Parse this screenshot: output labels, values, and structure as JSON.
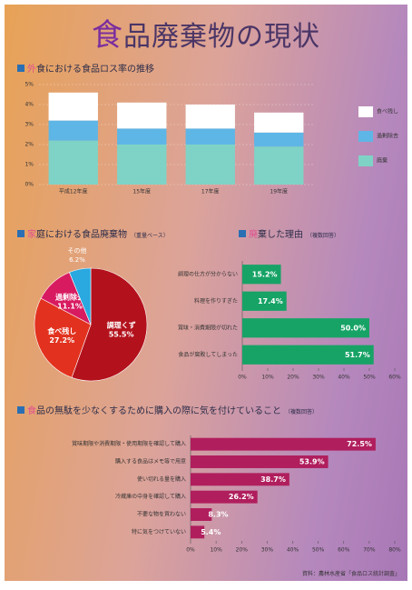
{
  "title": "食品廃棄物の現状",
  "source": "資料：農林水産省「食品ロス統計調査」",
  "chart_data": [
    {
      "type": "bar",
      "stacked": true,
      "title": "外食における食品ロス率の推移",
      "categories": [
        "平成12年度",
        "15年度",
        "17年度",
        "19年度"
      ],
      "series": [
        {
          "name": "廃棄",
          "color": "#7fd3c6",
          "values": [
            2.2,
            2.0,
            2.0,
            1.9
          ]
        },
        {
          "name": "過剰除去",
          "color": "#5eb6e6",
          "values": [
            1.0,
            0.8,
            0.8,
            0.7
          ]
        },
        {
          "name": "食べ残し",
          "color": "#ffffff",
          "values": [
            1.4,
            1.3,
            1.2,
            1.0
          ]
        }
      ],
      "ylim": [
        0,
        5
      ],
      "yticks": [
        {
          "value": 0,
          "label": "0%"
        },
        {
          "value": 1,
          "label": "1%"
        },
        {
          "value": 2,
          "label": "2%"
        },
        {
          "value": 3,
          "label": "3%"
        },
        {
          "value": 4,
          "label": "4%"
        },
        {
          "value": 5,
          "label": "5%"
        }
      ],
      "grid": true
    },
    {
      "type": "pie",
      "title": "家庭における食品廃棄物",
      "subtitle": "（重量ベース）",
      "categories": [
        "調理くず",
        "食べ残し",
        "過剰除去",
        "その他"
      ],
      "values": [
        55.5,
        27.2,
        11.1,
        6.2
      ],
      "value_labels": [
        "55.5%",
        "27.2%",
        "11.1%",
        "6.2%"
      ],
      "colors": [
        "#b3121d",
        "#e2321f",
        "#d81b60",
        "#2aa8e0"
      ]
    },
    {
      "type": "bar",
      "orientation": "horizontal",
      "title": "廃棄した理由",
      "subtitle": "（複数回答）",
      "categories": [
        "調理の仕方が分からない",
        "料理を作りすぎた",
        "賞味・消費期限が切れた",
        "食品が腐敗してしまった"
      ],
      "values": [
        15.2,
        17.4,
        50.0,
        51.7
      ],
      "value_labels": [
        "15.2%",
        "17.4%",
        "50.0%",
        "51.7%"
      ],
      "color": "#17a366",
      "xlim": [
        0,
        60
      ],
      "xticks": [
        {
          "value": 0,
          "label": "0%"
        },
        {
          "value": 10,
          "label": "10%"
        },
        {
          "value": 20,
          "label": "20%"
        },
        {
          "value": 30,
          "label": "30%"
        },
        {
          "value": 40,
          "label": "40%"
        },
        {
          "value": 50,
          "label": "50%"
        },
        {
          "value": 60,
          "label": "60%"
        }
      ]
    },
    {
      "type": "bar",
      "orientation": "horizontal",
      "title": "食品の無駄を少なくするために購入の際に気を付けていること",
      "subtitle": "（複数回答）",
      "categories": [
        "賞味期限や消費期限・使用期限を確認して購入",
        "購入する食品はメモ等で用意",
        "使い切れる量を購入",
        "冷蔵庫の中身を確認して購入",
        "不要な物を買わない",
        "特に気をつけていない"
      ],
      "values": [
        72.5,
        53.9,
        38.7,
        26.2,
        8.3,
        5.4
      ],
      "value_labels": [
        "72.5%",
        "53.9%",
        "38.7%",
        "26.2%",
        "8.3%",
        "5.4%"
      ],
      "color": "#b01e5d",
      "xlim": [
        0,
        80
      ],
      "xticks": [
        {
          "value": 0,
          "label": "0%"
        },
        {
          "value": 10,
          "label": "10%"
        },
        {
          "value": 20,
          "label": "20%"
        },
        {
          "value": 30,
          "label": "30%"
        },
        {
          "value": 40,
          "label": "40%"
        },
        {
          "value": 50,
          "label": "50%"
        },
        {
          "value": 60,
          "label": "60%"
        },
        {
          "value": 70,
          "label": "70%"
        },
        {
          "value": 80,
          "label": "80%"
        }
      ]
    }
  ]
}
